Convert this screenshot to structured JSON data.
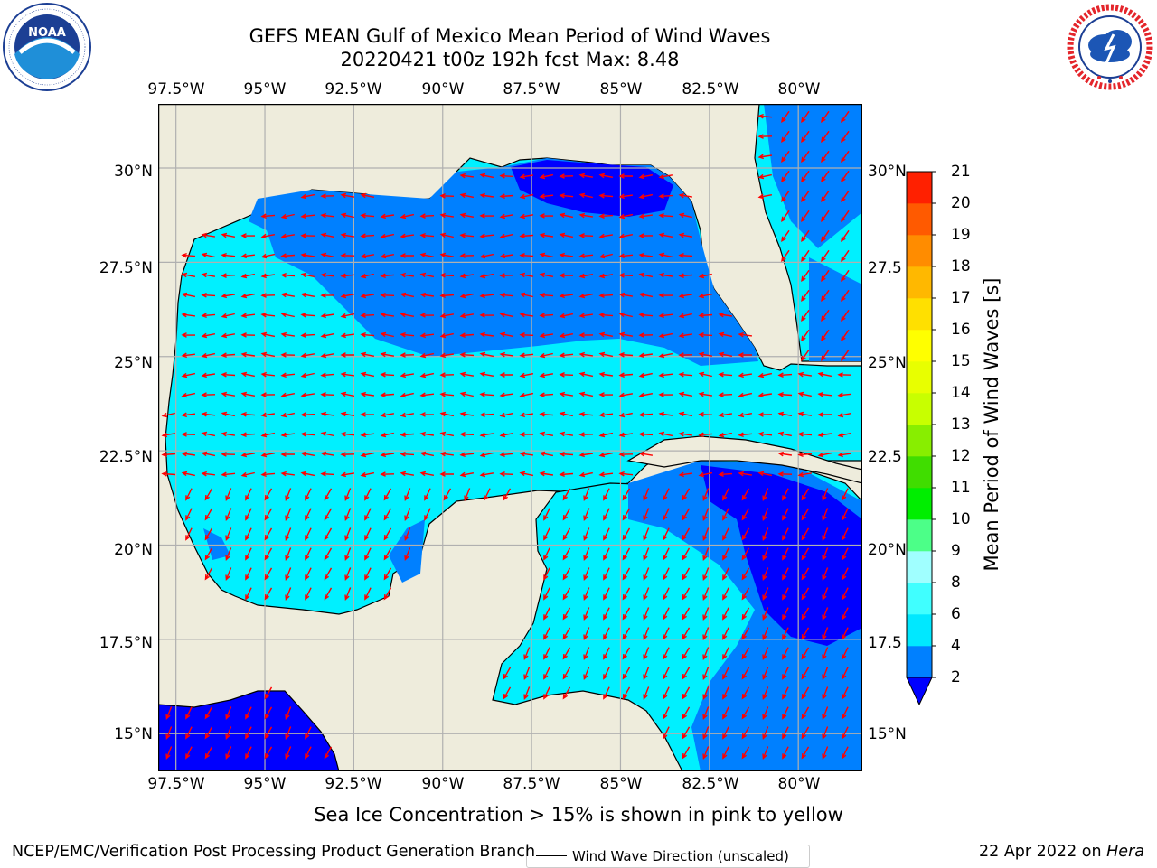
{
  "header": {
    "title_line1": "GEFS MEAN Gulf of Mexico Mean Period of Wind Waves",
    "title_line2": "20220421 t00z 192h fcst   Max: 8.48"
  },
  "logos": {
    "left": {
      "name": "noaa-logo",
      "text": "NOAA",
      "ring_text": "NATIONAL OCEANIC AND ATMOSPHERIC ADMINISTRATION · U.S. DEPARTMENT OF COMMERCE"
    },
    "right": {
      "name": "nws-logo",
      "ring_text": "NATIONAL WEATHER SERVICE"
    }
  },
  "map": {
    "lon_ticks": [
      "97.5°W",
      "95°W",
      "92.5°W",
      "90°W",
      "87.5°W",
      "85°W",
      "82.5°W",
      "80°W"
    ],
    "lat_ticks_left": [
      "30°N",
      "27.5°N",
      "25°N",
      "22.5°N",
      "20°N",
      "17.5°N",
      "15°N"
    ],
    "lat_ticks_right": [
      "30°N",
      "27.5",
      "25°N",
      "22.5",
      "20°N",
      "17.5",
      "15°N"
    ],
    "legend_label": "Wind Wave Direction (unscaled)",
    "extent": {
      "lon_min": -98.0,
      "lon_max": -78.2,
      "lat_min": 14.0,
      "lat_max": 31.7
    },
    "colors": {
      "land": "#eeecdc",
      "arrow": "#ff0000",
      "grid": "#b0b0b0"
    }
  },
  "colorbar": {
    "label": "Mean Period of Wind Waves [s]",
    "ticks": [
      "2",
      "4",
      "6",
      "8",
      "9",
      "10",
      "11",
      "12",
      "13",
      "14",
      "15",
      "16",
      "17",
      "18",
      "19",
      "20",
      "21"
    ],
    "levels": [
      2,
      4,
      6,
      8,
      9,
      10,
      11,
      12,
      13,
      14,
      15,
      16,
      17,
      18,
      19,
      20,
      21
    ],
    "colors": [
      "#0080ff",
      "#00e8ff",
      "#40ffff",
      "#a0ffff",
      "#4cff88",
      "#00ee00",
      "#40dd00",
      "#88ee00",
      "#c8ff00",
      "#e8ff00",
      "#ffff00",
      "#ffe000",
      "#ffb800",
      "#ff8c00",
      "#ff5a00",
      "#ff2000"
    ],
    "under_color": "#0000ff"
  },
  "footer": {
    "sea_ice_note": "Sea Ice Concentration > 15% is shown in pink to yellow",
    "branch": "NCEP/EMC/Verification Post Processing Product Generation Branch",
    "date": "22 Apr 2022 on ",
    "host": "Hera"
  }
}
